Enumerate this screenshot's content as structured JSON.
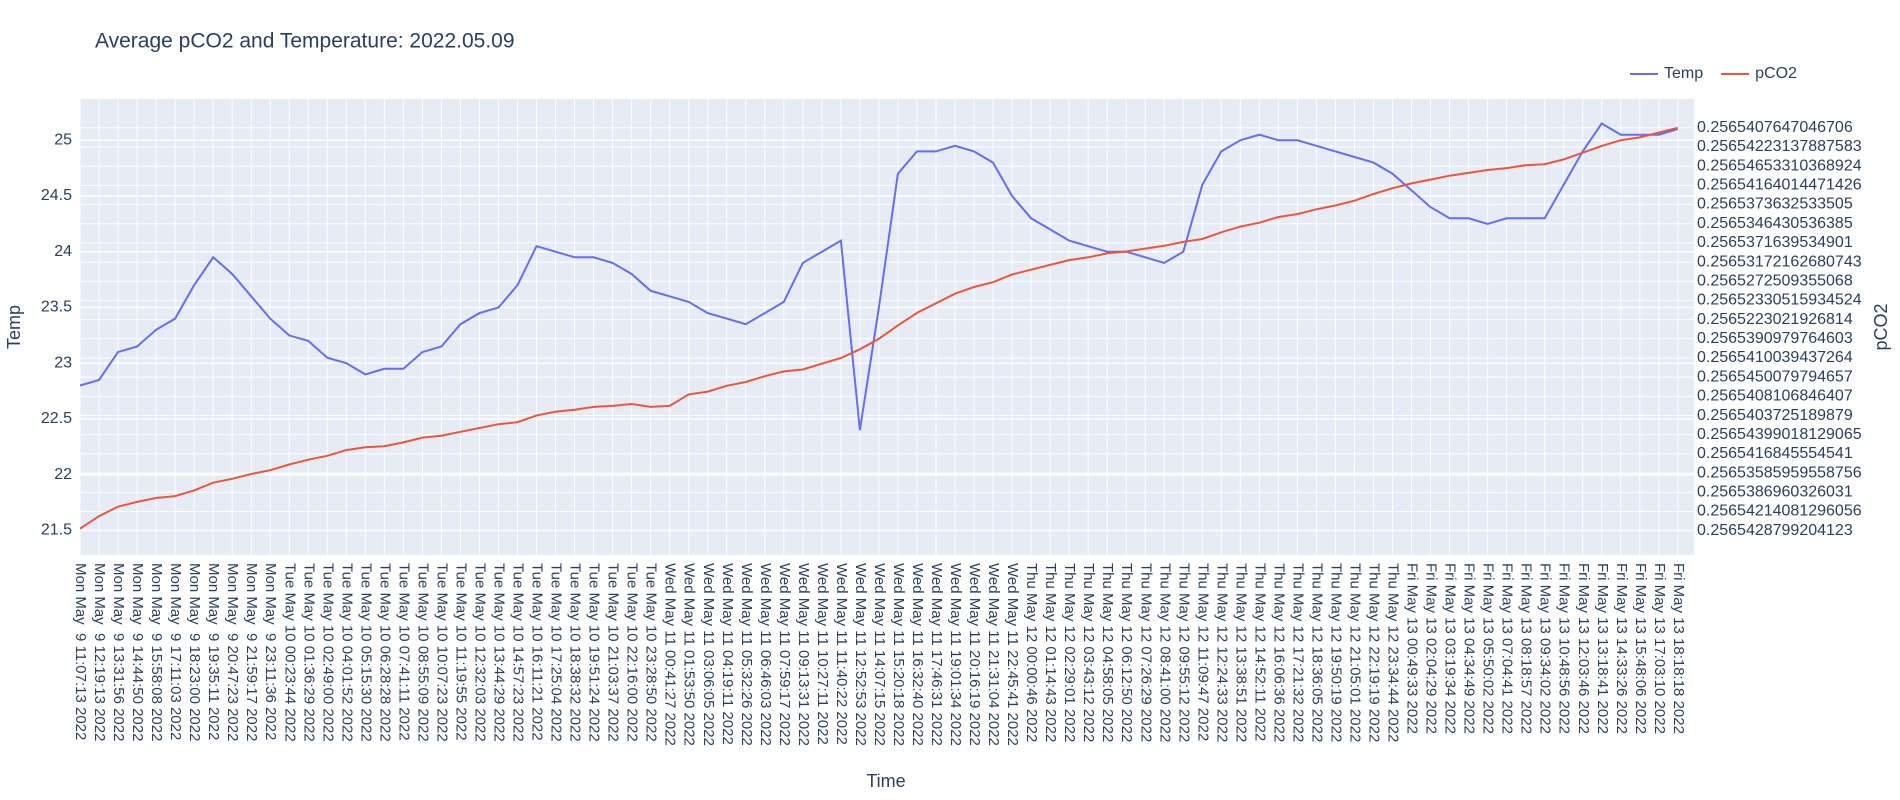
{
  "chart_data": {
    "type": "line",
    "title": "Average pCO2 and Temperature: 2022.05.09",
    "x_label": "Time",
    "y_label": "Temp",
    "y2_label": "pCO2",
    "legend": "top-right",
    "grid": true,
    "categories": [
      "Mon May  9 11:07:13 2022",
      "Mon May  9 12:19:13 2022",
      "Mon May  9 13:31:56 2022",
      "Mon May  9 14:44:50 2022",
      "Mon May  9 15:58:08 2022",
      "Mon May  9 17:11:03 2022",
      "Mon May  9 18:23:00 2022",
      "Mon May  9 19:35:11 2022",
      "Mon May  9 20:47:23 2022",
      "Mon May  9 21:59:17 2022",
      "Mon May  9 23:11:36 2022",
      "Tue May 10 00:23:44 2022",
      "Tue May 10 01:36:29 2022",
      "Tue May 10 02:49:00 2022",
      "Tue May 10 04:01:52 2022",
      "Tue May 10 05:15:30 2022",
      "Tue May 10 06:28:28 2022",
      "Tue May 10 07:41:11 2022",
      "Tue May 10 08:55:09 2022",
      "Tue May 10 10:07:23 2022",
      "Tue May 10 11:19:55 2022",
      "Tue May 10 12:32:03 2022",
      "Tue May 10 13:44:29 2022",
      "Tue May 10 14:57:23 2022",
      "Tue May 10 16:11:21 2022",
      "Tue May 10 17:25:04 2022",
      "Tue May 10 18:38:32 2022",
      "Tue May 10 19:51:24 2022",
      "Tue May 10 21:03:37 2022",
      "Tue May 10 22:16:00 2022",
      "Tue May 10 23:28:50 2022",
      "Wed May 11 00:41:27 2022",
      "Wed May 11 01:53:50 2022",
      "Wed May 11 03:06:05 2022",
      "Wed May 11 04:19:11 2022",
      "Wed May 11 05:32:26 2022",
      "Wed May 11 06:46:03 2022",
      "Wed May 11 07:59:17 2022",
      "Wed May 11 09:13:31 2022",
      "Wed May 11 10:27:11 2022",
      "Wed May 11 11:40:22 2022",
      "Wed May 11 12:52:53 2022",
      "Wed May 11 14:07:15 2022",
      "Wed May 11 15:20:18 2022",
      "Wed May 11 16:32:40 2022",
      "Wed May 11 17:46:31 2022",
      "Wed May 11 19:01:34 2022",
      "Wed May 11 20:16:19 2022",
      "Wed May 11 21:31:04 2022",
      "Wed May 11 22:45:41 2022",
      "Thu May 12 00:00:46 2022",
      "Thu May 12 01:14:43 2022",
      "Thu May 12 02:29:01 2022",
      "Thu May 12 03:43:12 2022",
      "Thu May 12 04:58:05 2022",
      "Thu May 12 06:12:50 2022",
      "Thu May 12 07:26:29 2022",
      "Thu May 12 08:41:00 2022",
      "Thu May 12 09:55:12 2022",
      "Thu May 12 11:09:47 2022",
      "Thu May 12 12:24:33 2022",
      "Thu May 12 13:38:51 2022",
      "Thu May 12 14:52:11 2022",
      "Thu May 12 16:06:36 2022",
      "Thu May 12 17:21:32 2022",
      "Thu May 12 18:36:05 2022",
      "Thu May 12 19:50:19 2022",
      "Thu May 12 21:05:01 2022",
      "Thu May 12 22:19:19 2022",
      "Thu May 12 23:34:44 2022",
      "Fri May 13 00:49:33 2022",
      "Fri May 13 02:04:29 2022",
      "Fri May 13 03:19:34 2022",
      "Fri May 13 04:34:49 2022",
      "Fri May 13 05:50:02 2022",
      "Fri May 13 07:04:41 2022",
      "Fri May 13 08:18:57 2022",
      "Fri May 13 09:34:02 2022",
      "Fri May 13 10:48:56 2022",
      "Fri May 13 12:03:46 2022",
      "Fri May 13 13:18:41 2022",
      "Fri May 13 14:33:26 2022",
      "Fri May 13 15:48:06 2022",
      "Fri May 13 17:03:10 2022",
      "Fri May 13 18:18:18 2022"
    ],
    "series": [
      {
        "name": "Temp",
        "color": "#636efa",
        "values": [
          22.8,
          22.85,
          23.1,
          23.15,
          23.3,
          23.4,
          23.7,
          23.95,
          23.8,
          23.6,
          23.4,
          23.25,
          23.2,
          23.05,
          23.0,
          22.9,
          22.95,
          22.95,
          23.1,
          23.15,
          23.35,
          23.45,
          23.5,
          23.7,
          24.05,
          24.0,
          23.95,
          23.95,
          23.9,
          23.8,
          23.65,
          23.6,
          23.55,
          23.45,
          23.4,
          23.35,
          23.45,
          23.55,
          23.9,
          24.0,
          24.1,
          22.4,
          23.5,
          24.7,
          24.9,
          24.9,
          24.95,
          24.9,
          24.8,
          24.5,
          24.3,
          24.2,
          24.1,
          24.05,
          24.0,
          24.0,
          23.95,
          23.9,
          24.0,
          24.6,
          24.9,
          25.0,
          25.05,
          25.0,
          25.0,
          24.95,
          24.9,
          24.85,
          24.8,
          24.7,
          24.55,
          24.4,
          24.3,
          24.3,
          24.25,
          24.3,
          24.3,
          24.3,
          24.6,
          24.9,
          25.15,
          25.05,
          25.05,
          25.05,
          25.1
        ]
      },
      {
        "name": "pCO2",
        "color": "#ef553b",
        "axis": "y2",
        "values": [
          0.1,
          0.75,
          1.25,
          1.5,
          1.7,
          1.8,
          2.1,
          2.5,
          2.7,
          2.95,
          3.15,
          3.45,
          3.7,
          3.9,
          4.2,
          4.35,
          4.4,
          4.6,
          4.85,
          4.95,
          5.15,
          5.35,
          5.55,
          5.65,
          6.0,
          6.2,
          6.3,
          6.45,
          6.5,
          6.6,
          6.45,
          6.5,
          7.1,
          7.25,
          7.55,
          7.75,
          8.05,
          8.3,
          8.4,
          8.7,
          9.0,
          9.45,
          10.0,
          10.7,
          11.35,
          11.85,
          12.35,
          12.7,
          12.95,
          13.35,
          13.6,
          13.85,
          14.1,
          14.25,
          14.45,
          14.55,
          14.7,
          14.85,
          15.05,
          15.2,
          15.55,
          15.85,
          16.05,
          16.35,
          16.5,
          16.75,
          16.95,
          17.2,
          17.55,
          17.85,
          18.1,
          18.3,
          18.5,
          18.65,
          18.8,
          18.9,
          19.05,
          19.1,
          19.35,
          19.7,
          20.05,
          20.35,
          20.5,
          20.75,
          21.0
        ]
      }
    ],
    "ylim": [
      21.28,
      25.37
    ],
    "yticks": [
      21.5,
      22,
      22.5,
      23,
      23.5,
      24,
      24.5,
      25
    ],
    "y2lim": [
      -1.27,
      22.5
    ],
    "y2ticks": [
      {
        "value": 0,
        "label": "0.2565428799204123"
      },
      {
        "value": 1,
        "label": "0.25654214081296056"
      },
      {
        "value": 2,
        "label": "0.2565386960326031"
      },
      {
        "value": 3,
        "label": "0.25653585959558756"
      },
      {
        "value": 4,
        "label": "0.2565416845554541"
      },
      {
        "value": 5,
        "label": "0.25654399018129065"
      },
      {
        "value": 6,
        "label": "0.2565403725189879"
      },
      {
        "value": 7,
        "label": "0.2565408106846407"
      },
      {
        "value": 8,
        "label": "0.2565450079794657"
      },
      {
        "value": 9,
        "label": "0.2565410039437264"
      },
      {
        "value": 10,
        "label": "0.2565390979764603"
      },
      {
        "value": 11,
        "label": "0.2565223021926814"
      },
      {
        "value": 12,
        "label": "0.25652330515934524"
      },
      {
        "value": 13,
        "label": "0.2565272509355068"
      },
      {
        "value": 14,
        "label": "0.25653172162680743"
      },
      {
        "value": 15,
        "label": "0.2565371639534901"
      },
      {
        "value": 16,
        "label": "0.2565346430536385"
      },
      {
        "value": 17,
        "label": "0.2565373632533505"
      },
      {
        "value": 18,
        "label": "0.25654164014471426"
      },
      {
        "value": 19,
        "label": "0.25654653310368924"
      },
      {
        "value": 20,
        "label": "0.25654223137887583"
      },
      {
        "value": 21,
        "label": "0.2565407647046706"
      }
    ]
  }
}
